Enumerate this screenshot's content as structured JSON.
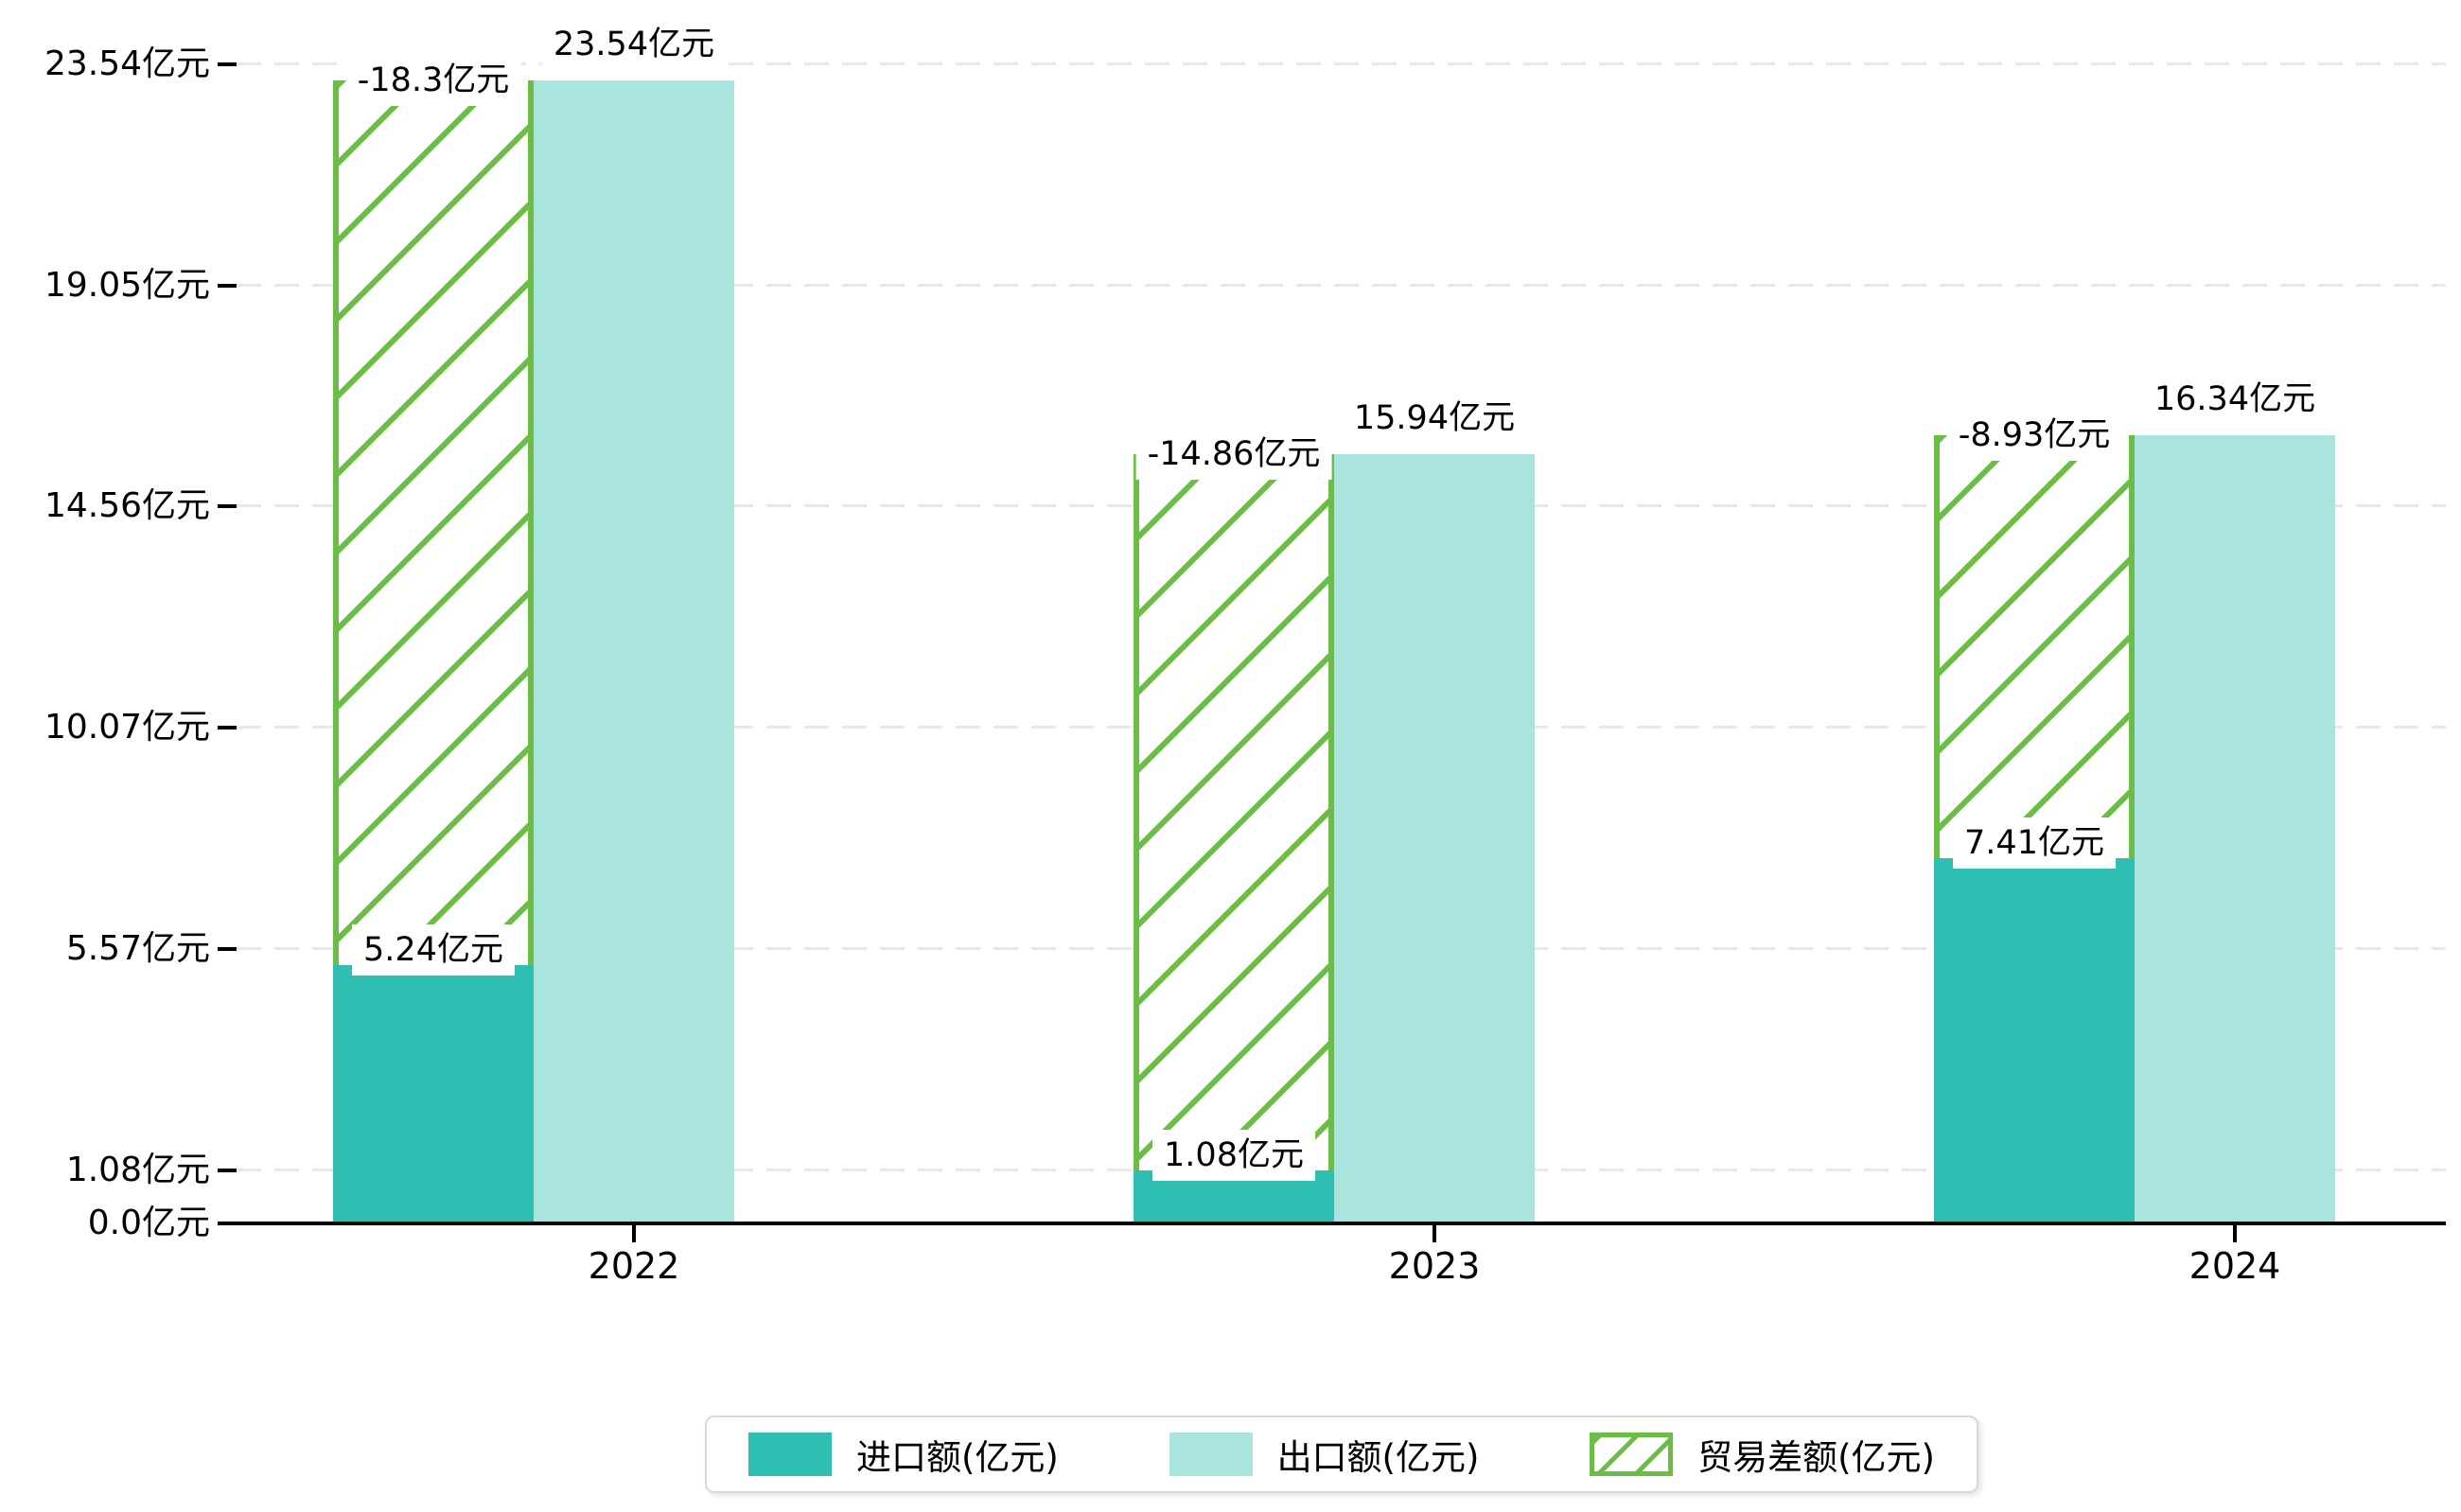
{
  "page": {
    "background": "#ffffff"
  },
  "chart_data": {
    "type": "bar",
    "title": "",
    "unit": "亿元",
    "categories": [
      "2022",
      "2023",
      "2024"
    ],
    "series": [
      {
        "name": "进口额(亿元)",
        "role": "import",
        "color": "#2fbfb2",
        "values": [
          5.24,
          1.08,
          7.41
        ],
        "value_labels": [
          "5.24亿元",
          "1.08亿元",
          "7.41亿元"
        ]
      },
      {
        "name": "出口额(亿元)",
        "role": "export",
        "color": "#a9e5de",
        "values": [
          23.54,
          15.94,
          16.34
        ],
        "value_labels": [
          "23.54亿元",
          "15.94亿元",
          "16.34亿元"
        ]
      },
      {
        "name": "贸易差额(亿元)",
        "role": "balance",
        "style": "hatched",
        "color": "#6abe45",
        "values": [
          -18.3,
          -14.86,
          -8.93
        ],
        "value_labels": [
          "-18.3亿元",
          "-14.86亿元",
          "-8.93亿元"
        ]
      }
    ],
    "y_axis": {
      "ticks": [
        {
          "value": 0,
          "label": "0.0亿元"
        },
        {
          "value": 1.08,
          "label": "1.08亿元"
        },
        {
          "value": 5.57,
          "label": "5.57亿元"
        },
        {
          "value": 10.07,
          "label": "10.07亿元"
        },
        {
          "value": 14.56,
          "label": "14.56亿元"
        },
        {
          "value": 19.05,
          "label": "19.05亿元"
        },
        {
          "value": 23.54,
          "label": "23.54亿元"
        }
      ],
      "range": [
        0,
        23.54
      ],
      "gridlines": "dashed"
    },
    "legend": {
      "position": "bottom",
      "items": [
        "进口额(亿元)",
        "出口额(亿元)",
        "贸易差额(亿元)"
      ]
    }
  },
  "colors": {
    "import": "#2fbfb2",
    "export": "#a9e5de",
    "balance_hatch": "#6abe45",
    "gridline": "#e8e8e8",
    "axis": "#000000",
    "text": "#000000",
    "label_background": "#ffffff",
    "legend_border": "#d9d9d9"
  }
}
